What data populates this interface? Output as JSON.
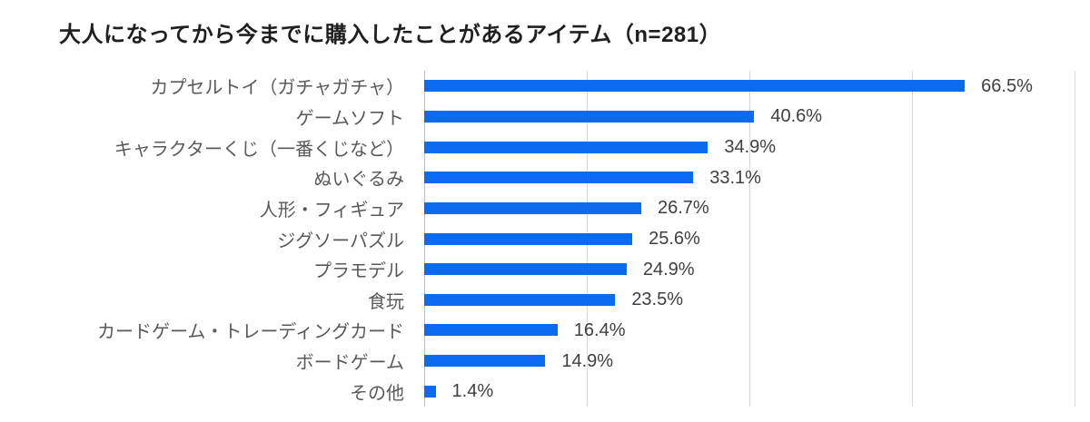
{
  "title": "大人になってから今までに購入したことがあるアイテム（n=281）",
  "colors": {
    "bar": "#0b6bef",
    "gridline": "#d9d9d9",
    "axis": "#bfbfbf",
    "title_text": "#1f1f1f",
    "category_text": "#595959",
    "value_text": "#3f3f3f",
    "background": "#ffffff"
  },
  "chart_data": {
    "type": "bar",
    "orientation": "horizontal",
    "title": "大人になってから今までに購入したことがあるアイテム（n=281）",
    "categories": [
      "カプセルトイ（ガチャガチャ）",
      "ゲームソフト",
      "キャラクターくじ（一番くじなど）",
      "ぬいぐるみ",
      "人形・フィギュア",
      "ジグソーパズル",
      "プラモデル",
      "食玩",
      "カードゲーム・トレーディングカード",
      "ボードゲーム",
      "その他"
    ],
    "values": [
      66.5,
      40.6,
      34.9,
      33.1,
      26.7,
      25.6,
      24.9,
      23.5,
      16.4,
      14.9,
      1.4
    ],
    "value_labels": [
      "66.5%",
      "40.6%",
      "34.9%",
      "33.1%",
      "26.7%",
      "25.6%",
      "24.9%",
      "23.5%",
      "16.4%",
      "14.9%",
      "1.4%"
    ],
    "xlabel": "",
    "ylabel": "",
    "xlim": [
      0,
      80
    ],
    "xticks": [
      0,
      20,
      40,
      60,
      80
    ],
    "grid": "vertical-gridlines",
    "legend": "none",
    "data_label_position": "outside-end"
  }
}
